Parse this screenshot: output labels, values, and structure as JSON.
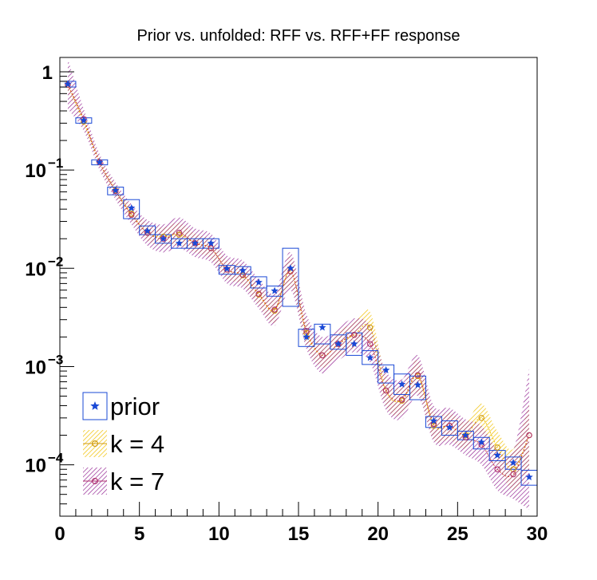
{
  "chart_data": {
    "type": "scatter",
    "title": "Prior vs. unfolded: RFF vs. RFF+FF response",
    "xlabel": "",
    "ylabel": "",
    "xlim": [
      0,
      30
    ],
    "ylim": [
      3e-05,
      1.4
    ],
    "y_scale": "log",
    "x_ticks": [
      "0",
      "5",
      "10",
      "15",
      "20",
      "25",
      "30"
    ],
    "y_ticks": [
      {
        "base": "1",
        "exp": ""
      },
      {
        "base": "10",
        "exp": "−1"
      },
      {
        "base": "10",
        "exp": "−2"
      },
      {
        "base": "10",
        "exp": "−3"
      },
      {
        "base": "10",
        "exp": "−4"
      }
    ],
    "legend_position": "bottom-left",
    "x": [
      0.5,
      1.5,
      2.5,
      3.5,
      4.5,
      5.5,
      6.5,
      7.5,
      8.5,
      9.5,
      10.5,
      11.5,
      12.5,
      13.5,
      14.5,
      15.5,
      16.5,
      17.5,
      18.5,
      19.5,
      20.5,
      21.5,
      22.5,
      23.5,
      24.5,
      25.5,
      26.5,
      27.5,
      28.5,
      29.5
    ],
    "series": [
      {
        "name": "prior",
        "color": "#1a49d6",
        "marker": "star",
        "values": [
          0.75,
          0.32,
          0.12,
          0.062,
          0.041,
          0.024,
          0.02,
          0.018,
          0.018,
          0.018,
          0.0099,
          0.0095,
          0.0072,
          0.0059,
          0.01,
          0.002,
          0.0025,
          0.0017,
          0.0017,
          0.00123,
          0.00092,
          0.00066,
          0.00065,
          0.00028,
          0.00024,
          0.0002,
          0.00017,
          0.000125,
          0.000105,
          7.5e-05
        ],
        "box_lo": [
          0.7,
          0.3,
          0.113,
          0.056,
          0.032,
          0.022,
          0.018,
          0.016,
          0.016,
          0.016,
          0.0087,
          0.0087,
          0.0063,
          0.0052,
          0.0041,
          0.0016,
          0.0017,
          0.0015,
          0.0013,
          0.00105,
          0.00068,
          0.00052,
          0.00046,
          0.00024,
          0.0002,
          0.00018,
          0.000145,
          0.00011,
          9e-05,
          6.2e-05
        ],
        "box_hi": [
          0.8,
          0.34,
          0.127,
          0.067,
          0.05,
          0.027,
          0.022,
          0.02,
          0.02,
          0.02,
          0.0107,
          0.0104,
          0.0082,
          0.0066,
          0.016,
          0.0024,
          0.0027,
          0.0021,
          0.0022,
          0.00145,
          0.00104,
          0.00084,
          0.0008,
          0.00031,
          0.00028,
          0.00022,
          0.00019,
          0.00014,
          0.00012,
          8.8e-05
        ]
      },
      {
        "name": "k = 4",
        "color": "#f0c000",
        "marker": "circle",
        "values": [
          0.74,
          0.31,
          0.12,
          0.062,
          0.036,
          0.023,
          0.021,
          0.022,
          0.018,
          0.016,
          0.0097,
          0.0085,
          0.0054,
          0.0037,
          0.0094,
          0.0022,
          0.0013,
          0.0017,
          0.0021,
          0.0025,
          0.00057,
          0.00045,
          0.0008,
          0.00025,
          0.00025,
          0.0002,
          0.0003,
          0.00015,
          9e-05,
          0.0002
        ],
        "band_lo": [
          0.62,
          0.28,
          0.108,
          0.054,
          0.031,
          0.019,
          0.017,
          0.017,
          0.0145,
          0.0125,
          0.0078,
          0.0068,
          0.0042,
          0.0028,
          0.0066,
          0.00165,
          0.00098,
          0.00125,
          0.00155,
          0.0017,
          0.0004,
          0.00032,
          0.00054,
          0.00018,
          0.00018,
          0.000145,
          0.00021,
          0.0001,
          5.5e-05,
          9e-05
        ],
        "band_hi": [
          0.88,
          0.345,
          0.133,
          0.07,
          0.042,
          0.028,
          0.026,
          0.029,
          0.0225,
          0.0195,
          0.012,
          0.0106,
          0.0068,
          0.0048,
          0.013,
          0.0029,
          0.0017,
          0.0023,
          0.0028,
          0.0036,
          0.0008,
          0.00062,
          0.00115,
          0.00034,
          0.00034,
          0.000275,
          0.00042,
          0.00022,
          0.000145,
          0.00042
        ]
      },
      {
        "name": "k = 7",
        "color": "#8e1a8e",
        "marker": "circle",
        "values": [
          0.74,
          0.33,
          0.12,
          0.061,
          0.035,
          0.023,
          0.02,
          0.023,
          0.018,
          0.016,
          0.0097,
          0.0086,
          0.0055,
          0.0038,
          0.0093,
          0.0023,
          0.0013,
          0.0017,
          0.0021,
          0.0017,
          0.00057,
          0.00046,
          0.00082,
          0.00026,
          0.00025,
          0.00019,
          0.00016,
          9e-05,
          8e-05,
          0.0002
        ],
        "band_lo": [
          0.42,
          0.25,
          0.1,
          0.05,
          0.028,
          0.017,
          0.0145,
          0.016,
          0.013,
          0.0115,
          0.007,
          0.0062,
          0.0039,
          0.0026,
          0.006,
          0.0015,
          0.00085,
          0.00115,
          0.0014,
          0.0011,
          0.00036,
          0.00029,
          0.0005,
          0.00017,
          0.00016,
          0.000125,
          0.0001,
          5.5e-05,
          4.5e-05,
          3.5e-05
        ],
        "band_hi": [
          1.35,
          0.42,
          0.145,
          0.075,
          0.045,
          0.031,
          0.028,
          0.033,
          0.0255,
          0.0225,
          0.0135,
          0.012,
          0.0078,
          0.0056,
          0.0145,
          0.0034,
          0.002,
          0.0025,
          0.0031,
          0.0026,
          0.0009,
          0.00074,
          0.0013,
          0.0004,
          0.00038,
          0.00029,
          0.00025,
          0.000145,
          0.00014,
          0.00095
        ]
      }
    ]
  }
}
